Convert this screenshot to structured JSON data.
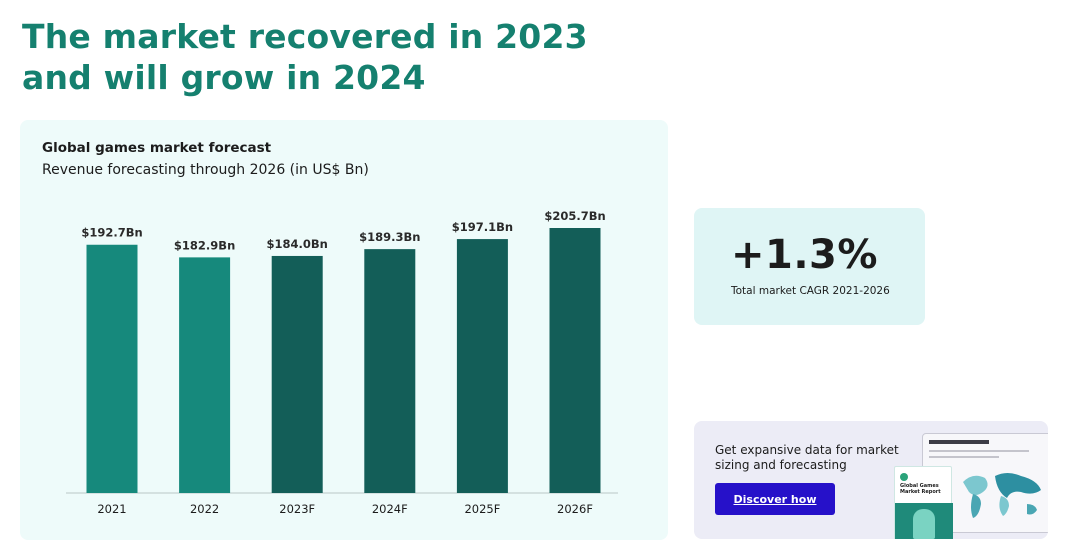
{
  "headline": {
    "line1": "The market recovered in 2023",
    "line2": "and will grow in 2024"
  },
  "chart_card": {
    "title": "Global games market forecast",
    "subtitle": "Revenue forecasting through 2026 (in US$ Bn)"
  },
  "chart_data": {
    "type": "bar",
    "title": "Global games market forecast",
    "subtitle": "Revenue forecasting through 2026 (in US$ Bn)",
    "categories": [
      "2021",
      "2022",
      "2023F",
      "2024F",
      "2025F",
      "2026F"
    ],
    "values": [
      192.7,
      182.9,
      184.0,
      189.3,
      197.1,
      205.7
    ],
    "value_labels": [
      "$192.7Bn",
      "$182.9Bn",
      "$184.0Bn",
      "$189.3Bn",
      "$197.1Bn",
      "$205.7Bn"
    ],
    "ylim": [
      0,
      205.7
    ],
    "grid": false,
    "colors": {
      "actual": "#16897c",
      "forecast": "#135e58",
      "axis": "#b9c7c5"
    },
    "bar_kind": [
      "actual",
      "actual",
      "forecast",
      "forecast",
      "forecast",
      "forecast"
    ]
  },
  "cagr": {
    "value": "+1.3%",
    "label": "Total market CAGR 2021-2026"
  },
  "promo": {
    "text": "Get expansive data for market sizing and forecasting",
    "button_label": "Discover how",
    "report_title": "Global Games Market Report"
  },
  "colors": {
    "headline": "#15806f",
    "chart_card_bg": "#eefbfa",
    "cagr_card_bg": "#dff5f5",
    "promo_card_bg": "#ececf6",
    "button": "#2611c9"
  }
}
